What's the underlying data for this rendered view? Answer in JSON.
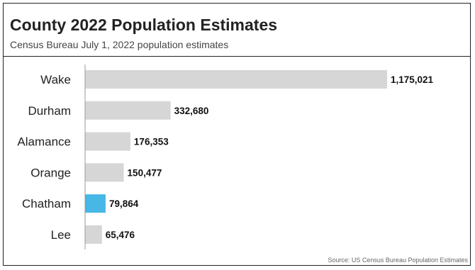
{
  "header": {
    "title": "County 2022 Population Estimates",
    "subtitle": "Census Bureau July 1, 2022 population estimates"
  },
  "footer": {
    "source": "Source: US Census Bureau Population Estimates"
  },
  "colors": {
    "bar": "#d6d6d6",
    "highlight": "#47b7e6",
    "axis": "#999999",
    "label": "#222222",
    "value": "#111111"
  },
  "chart_data": {
    "type": "bar",
    "orientation": "horizontal",
    "categories": [
      "Wake",
      "Durham",
      "Alamance",
      "Orange",
      "Chatham",
      "Lee"
    ],
    "values": [
      1175021,
      332680,
      176353,
      150477,
      79864,
      65476
    ],
    "value_labels": [
      "1,175,021",
      "332,680",
      "176,353",
      "150,477",
      "79,864",
      "65,476"
    ],
    "highlight_category": "Chatham",
    "xlim": [
      0,
      1175021
    ],
    "grid": false,
    "legend": "none"
  }
}
